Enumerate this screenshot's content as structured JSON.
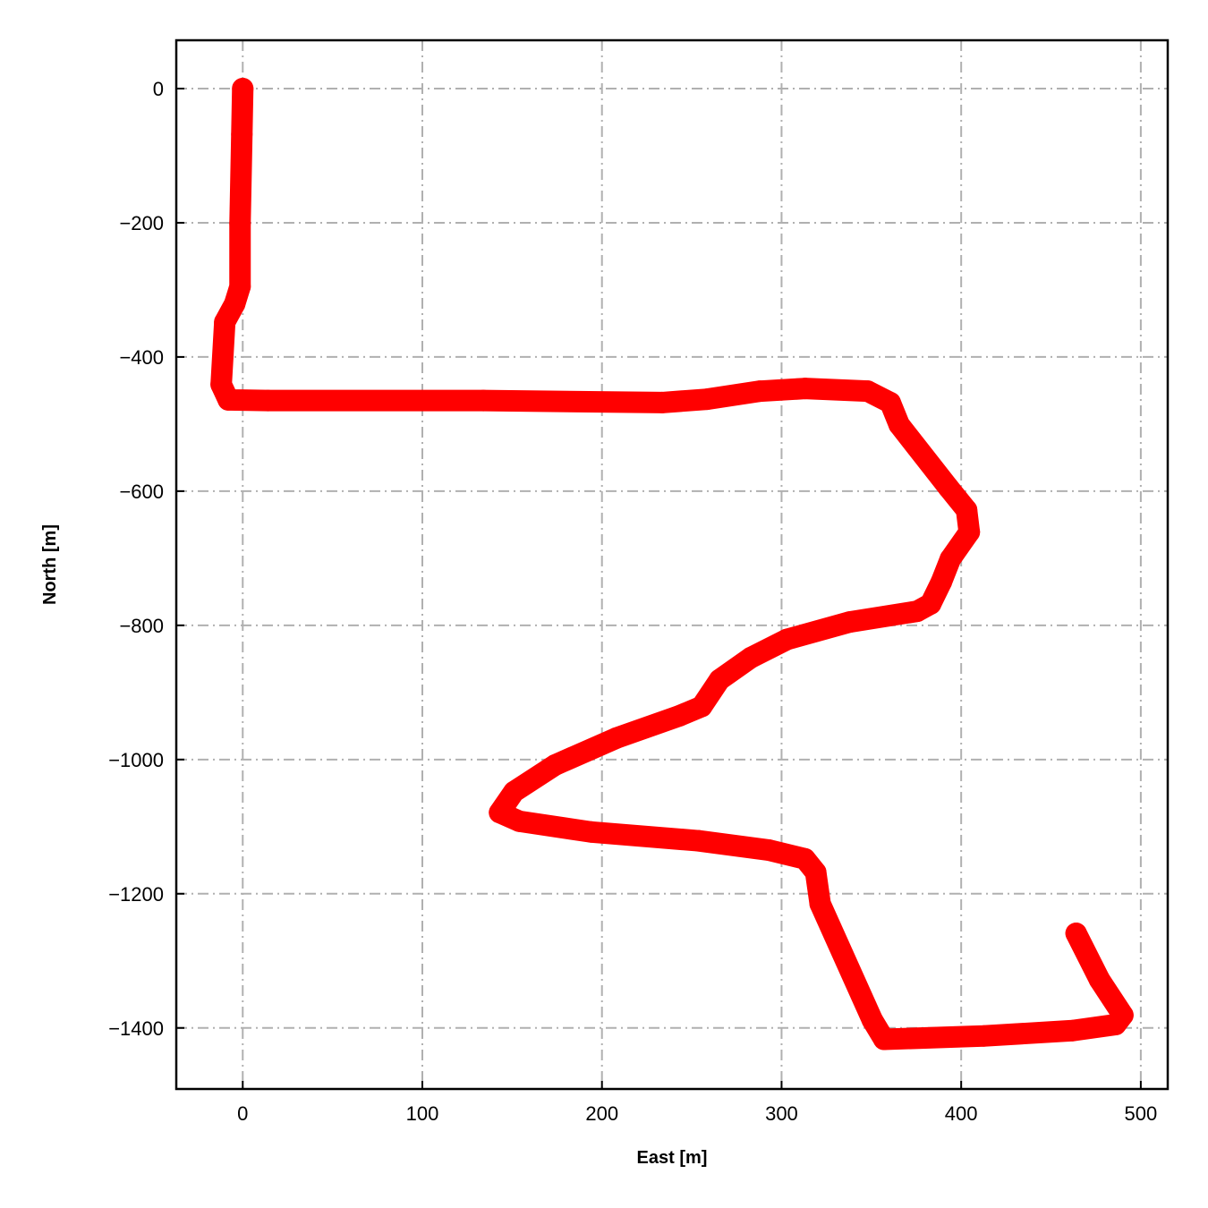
{
  "chart_data": {
    "type": "line",
    "title": "",
    "xlabel": "East [m]",
    "ylabel": "North [m]",
    "xlim": [
      -37,
      515
    ],
    "ylim": [
      -1491,
      72
    ],
    "xticks": [
      0,
      100,
      200,
      300,
      400,
      500
    ],
    "yticks": [
      0,
      -200,
      -400,
      -600,
      -800,
      -1000,
      -1200,
      -1400
    ],
    "xtick_labels": [
      "0",
      "100",
      "200",
      "300",
      "400",
      "500"
    ],
    "ytick_labels": [
      "0",
      "−200",
      "−400",
      "−600",
      "−800",
      "−1000",
      "−1200",
      "−1400"
    ],
    "grid": true,
    "grid_style": "dash-dot",
    "colors": {
      "series": "#ff0000",
      "grid": "#b0b0b0"
    },
    "series": [
      {
        "x": [
          0,
          -0.5,
          -1.5,
          -1.5,
          -4.5,
          -10,
          -12,
          -8,
          14,
          134,
          233.5,
          258.5,
          288,
          313,
          348,
          360.5,
          365.5,
          393,
          403,
          404.5,
          394,
          389,
          383,
          375.5,
          338,
          303,
          283,
          265.5,
          255.5,
          243,
          208,
          174,
          151,
          143,
          154,
          194,
          253.5,
          293,
          313,
          319,
          321.5,
          350.5,
          357,
          412.5,
          462,
          486,
          490,
          477,
          464
        ],
        "y": [
          0,
          -68,
          -201,
          -295,
          -321,
          -348,
          -441,
          -464,
          -465,
          -465,
          -468,
          -463,
          -451,
          -447,
          -451,
          -468,
          -501,
          -595,
          -628,
          -661,
          -701,
          -735,
          -768,
          -779,
          -795,
          -821,
          -848,
          -881,
          -921,
          -935,
          -968,
          -1008,
          -1048,
          -1079,
          -1092,
          -1108,
          -1121,
          -1135,
          -1148,
          -1168,
          -1215,
          -1388,
          -1417,
          -1412,
          -1404,
          -1395,
          -1381,
          -1328,
          -1259
        ]
      }
    ]
  }
}
